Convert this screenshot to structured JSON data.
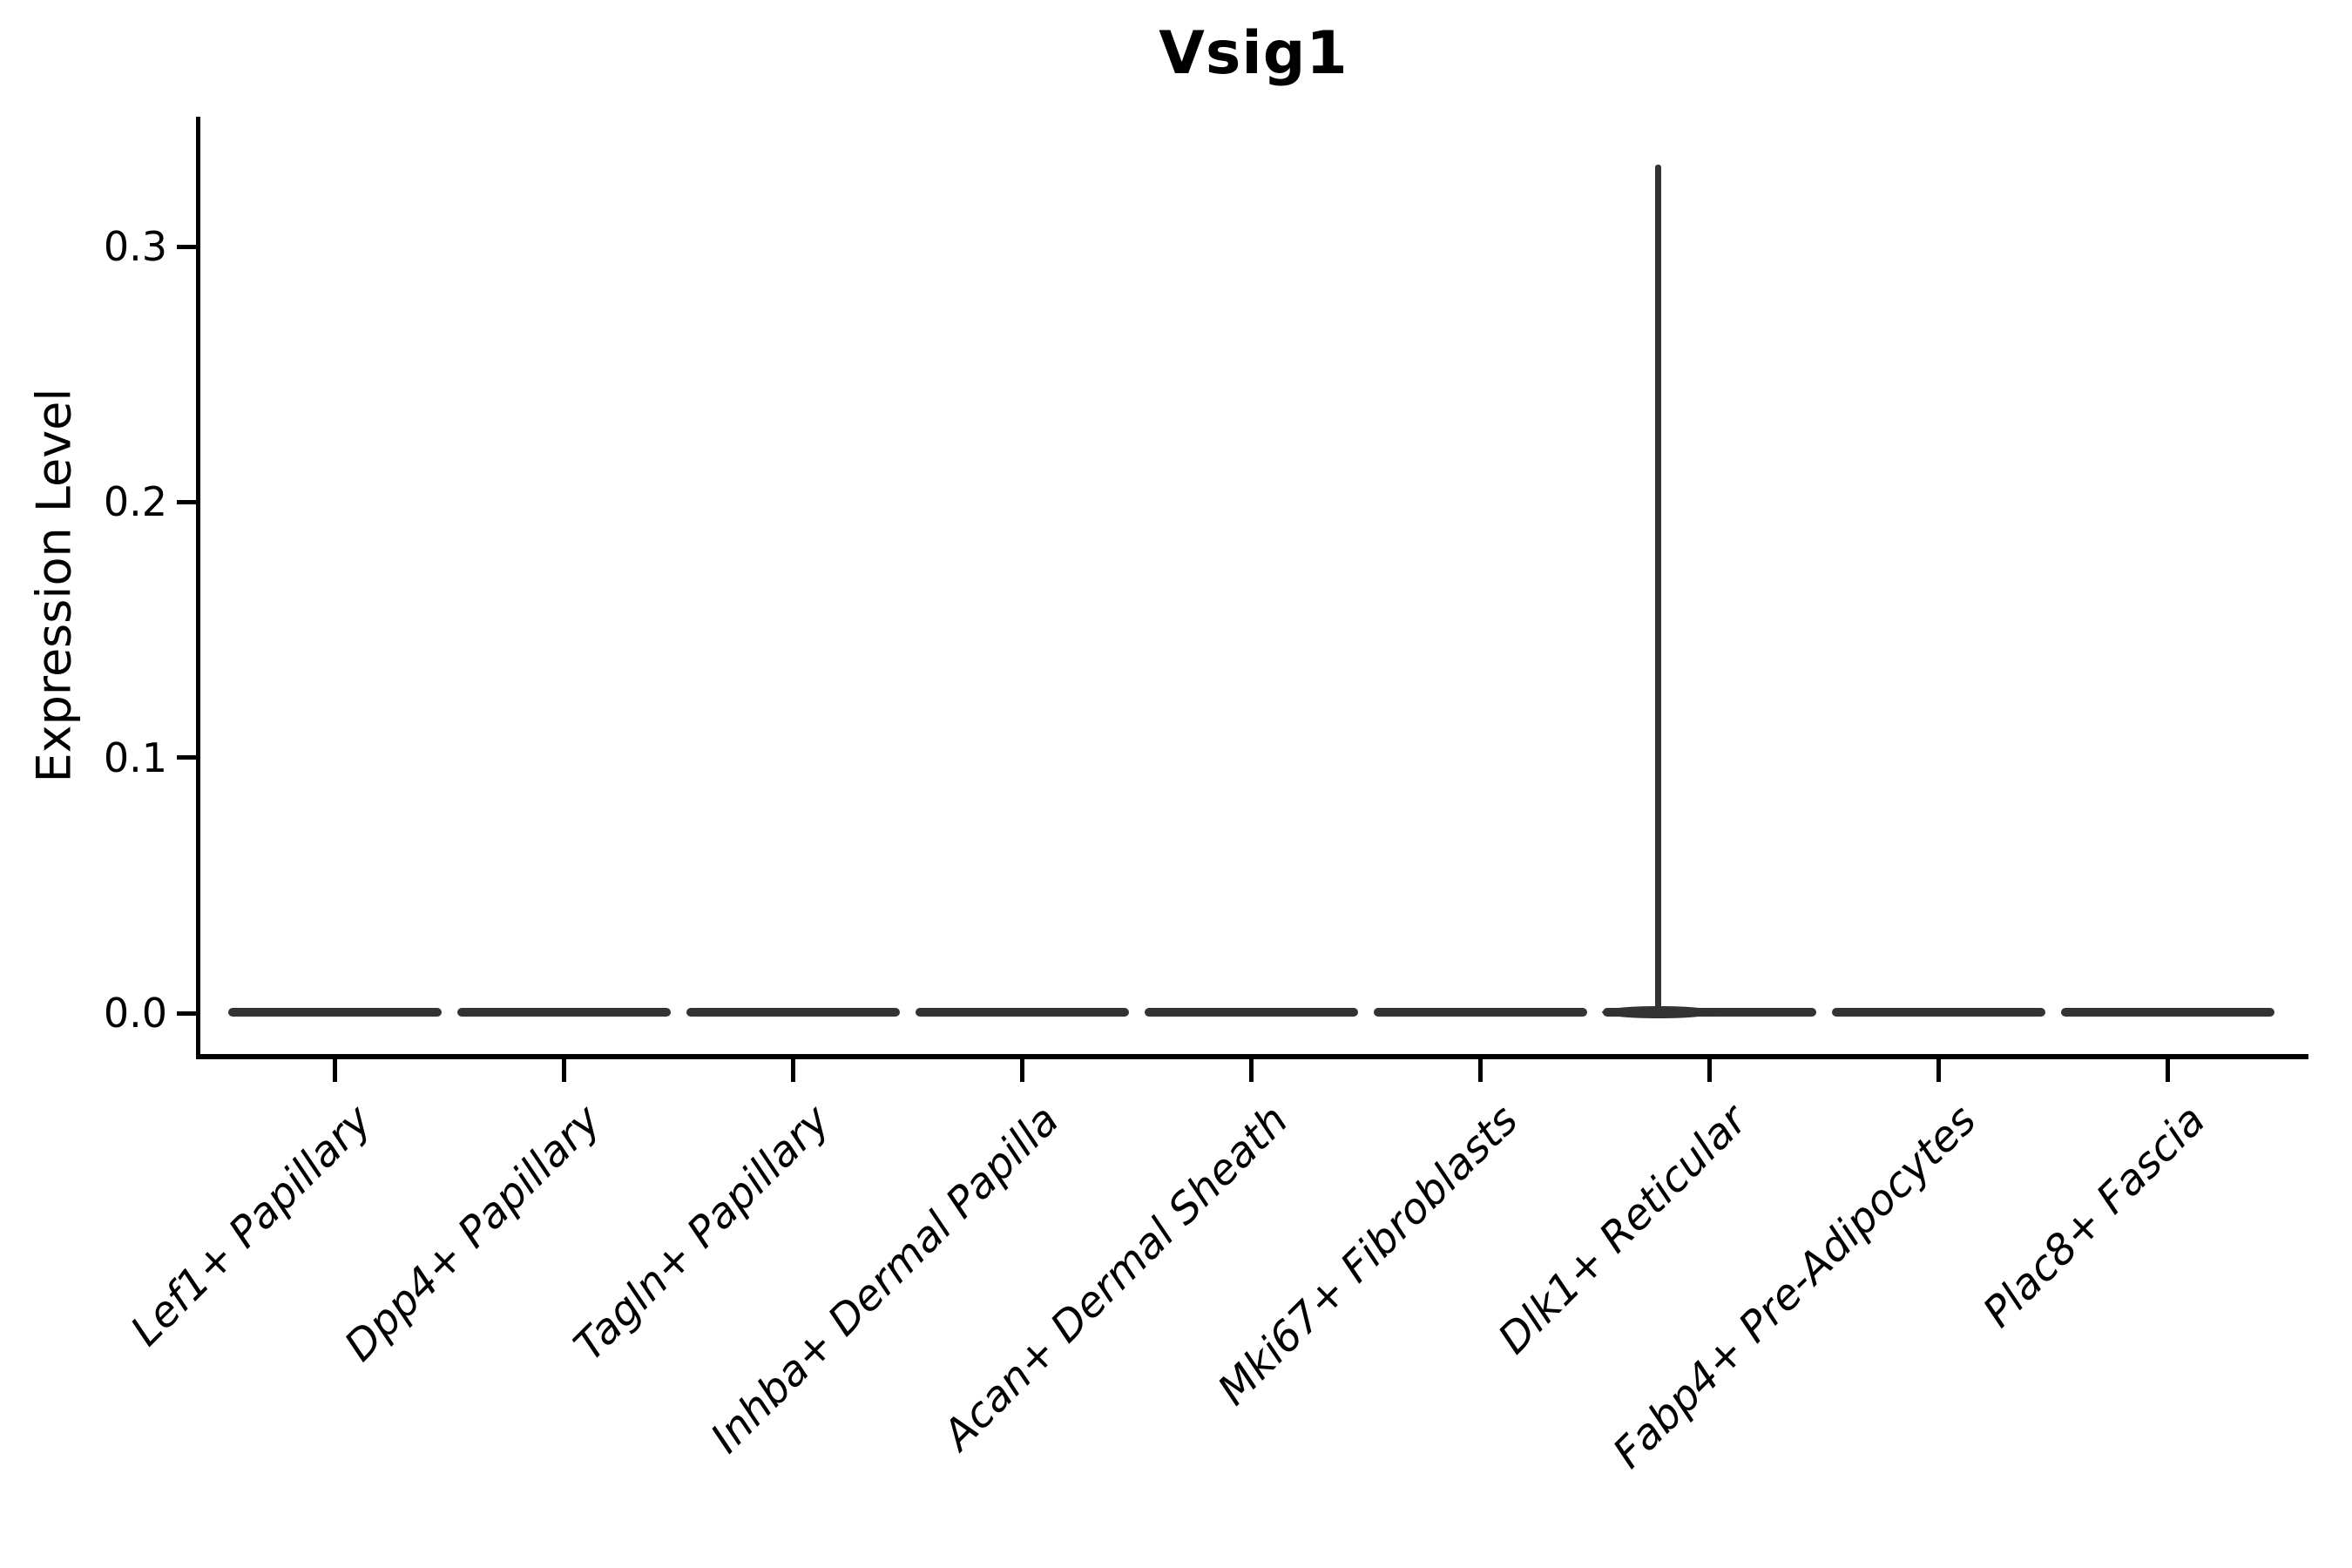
{
  "page": {
    "background": "#ffffff"
  },
  "chart_data": {
    "type": "violin",
    "title": "Vsig1",
    "ylabel": "Expression Level",
    "xlabel": "",
    "ylim": [
      -0.016,
      0.35
    ],
    "grid": false,
    "legend": null,
    "yticks": [
      {
        "value": 0.0,
        "label": "0.0"
      },
      {
        "value": 0.1,
        "label": "0.1"
      },
      {
        "value": 0.2,
        "label": "0.2"
      },
      {
        "value": 0.3,
        "label": "0.3"
      }
    ],
    "categories": [
      "Lef1+ Papillary",
      "Dpp4+ Papillary",
      "Tagln+ Papillary",
      "Inhba+ Dermal Papilla",
      "Acan+ Dermal Sheath",
      "Mki67+ Fibroblasts",
      "Dlk1+ Reticular",
      "Fabp4+ Pre-Adipocytes",
      "Plac8+ Fascia"
    ],
    "series": [
      {
        "category": "Lef1+ Papillary",
        "median": 0.0,
        "min": 0.0,
        "max": 0.0
      },
      {
        "category": "Dpp4+ Papillary",
        "median": 0.0,
        "min": 0.0,
        "max": 0.0
      },
      {
        "category": "Tagln+ Papillary",
        "median": 0.0,
        "min": 0.0,
        "max": 0.0
      },
      {
        "category": "Inhba+ Dermal Papilla",
        "median": 0.0,
        "min": 0.0,
        "max": 0.0
      },
      {
        "category": "Acan+ Dermal Sheath",
        "median": 0.0,
        "min": 0.0,
        "max": 0.0
      },
      {
        "category": "Mki67+ Fibroblasts",
        "median": 0.0,
        "min": 0.0,
        "max": 0.0
      },
      {
        "category": "Dlk1+ Reticular",
        "median": 0.0,
        "min": 0.0,
        "max": 0.332
      },
      {
        "category": "Fabp4+ Pre-Adipocytes",
        "median": 0.0,
        "min": 0.0,
        "max": 0.0
      },
      {
        "category": "Plac8+ Fascia",
        "median": 0.0,
        "min": 0.0,
        "max": 0.0
      }
    ],
    "colors": {
      "violin": "#333333",
      "axis": "#000000",
      "text": "#000000"
    }
  }
}
